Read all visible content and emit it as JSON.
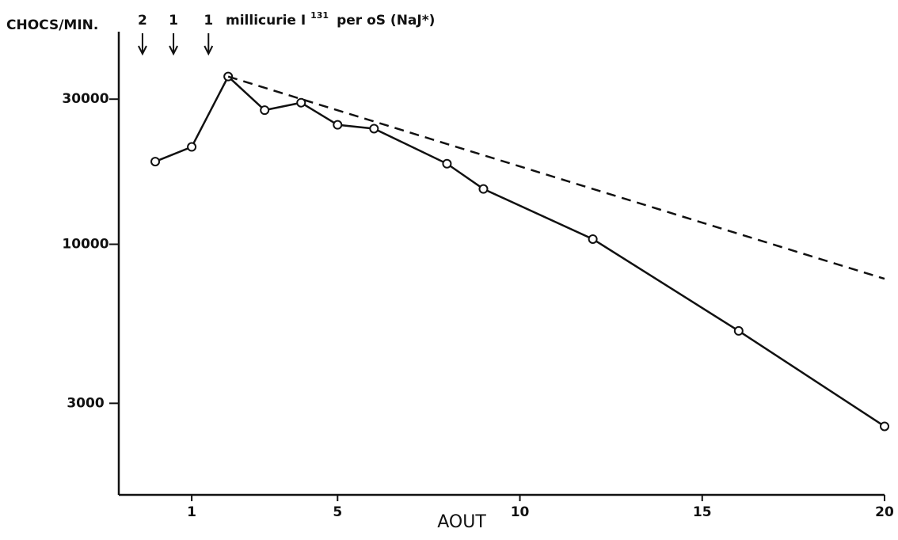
{
  "chart_data": {
    "type": "line",
    "y_label": "CHOCS/MIN.",
    "x_label": "AOUT",
    "ylog": true,
    "xlim": [
      -1,
      20
    ],
    "ylim": [
      1500,
      50000
    ],
    "xticks": [
      1,
      5,
      10,
      15,
      20
    ],
    "yticks": [
      3000,
      10000,
      30000
    ],
    "color": "#111111",
    "series": [
      {
        "x": [
          0,
          1,
          2,
          3,
          4,
          5,
          6,
          8,
          9,
          12,
          16,
          20
        ],
        "values": [
          18700,
          20900,
          35600,
          27600,
          29200,
          24700,
          24000,
          18400,
          15200,
          10400,
          5190,
          2520
        ],
        "markers": true,
        "dashed": false
      },
      {
        "x": [
          2,
          20
        ],
        "values": [
          35600,
          7700
        ],
        "markers": false,
        "dashed": true
      }
    ],
    "doses": [
      {
        "label": "2",
        "x": -0.35
      },
      {
        "label": "1",
        "x": 0.5
      },
      {
        "label": "1",
        "x": 1.46
      }
    ],
    "dose_text": "millicurie I",
    "dose_sup": "131",
    "dose_text_end": "per oS  (NaJ*)"
  }
}
